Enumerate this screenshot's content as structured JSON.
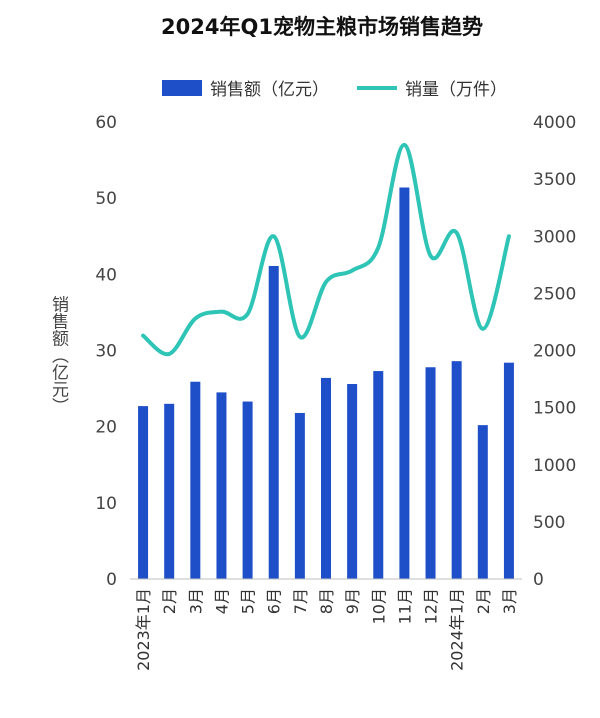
{
  "chart_data": {
    "type": "bar+line",
    "title": "2024年Q1宠物主粮市场销售趋势",
    "categories": [
      "2023年1月",
      "2月",
      "3月",
      "4月",
      "5月",
      "6月",
      "7月",
      "8月",
      "9月",
      "10月",
      "11月",
      "12月",
      "2024年1月",
      "2月",
      "3月"
    ],
    "series": [
      {
        "name": "销售额（亿元）",
        "type": "bar",
        "axis": "left",
        "color": "#1f4fc8",
        "values": [
          22.7,
          23.0,
          25.9,
          24.5,
          23.3,
          41.1,
          21.8,
          26.4,
          25.6,
          27.3,
          51.4,
          27.8,
          28.6,
          20.2,
          28.4
        ]
      },
      {
        "name": "销量（万件）",
        "type": "line",
        "axis": "right",
        "color": "#2ec4b6",
        "values": [
          2130,
          1970,
          2280,
          2340,
          2320,
          3000,
          2120,
          2600,
          2700,
          2900,
          3800,
          2830,
          3030,
          2190,
          3000
        ]
      }
    ],
    "y_left": {
      "label": "销售额（亿元）",
      "ylim": [
        0,
        60
      ],
      "ticks": [
        0,
        10,
        20,
        30,
        40,
        50,
        60
      ]
    },
    "y_right": {
      "label": "",
      "ylim": [
        0,
        4000
      ],
      "ticks": [
        0,
        500,
        1000,
        1500,
        2000,
        2500,
        3000,
        3500,
        4000
      ]
    },
    "legend_position": "top-center",
    "grid": false
  }
}
